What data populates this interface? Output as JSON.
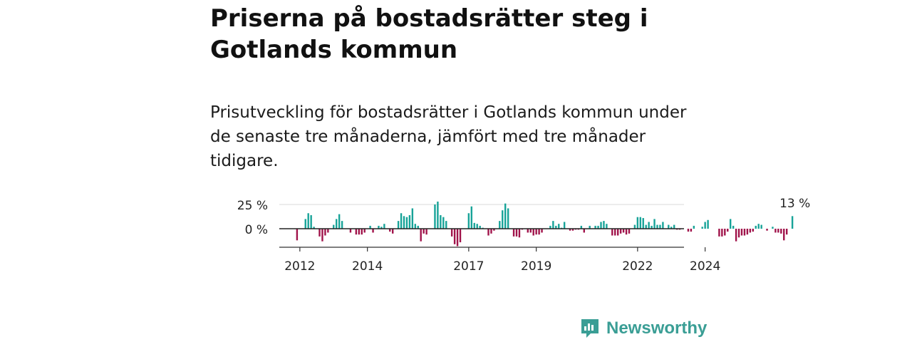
{
  "title": "Priserna på bostadsrätter steg i Gotlands kommun",
  "subtitle": "Prisutveckling för bostadsrätter i Gotlands kommun under de senaste tre månaderna, jämfört med tre månader tidigare.",
  "brand": {
    "name": "Newsworthy",
    "icon": "newsworthy-logo-icon",
    "color": "#3a9e95"
  },
  "colors": {
    "positive": "#17a398",
    "negative": "#a0134a",
    "axis": "#333333",
    "grid": "#d9d9d9"
  },
  "chart_data": {
    "type": "bar",
    "title": "",
    "xlabel": "",
    "ylabel": "",
    "y_ticks": [
      {
        "value": 0,
        "label": "0 %"
      },
      {
        "value": 25,
        "label": "25 %"
      }
    ],
    "x_ticks": [
      {
        "date": "2012-01",
        "label": "2012"
      },
      {
        "date": "2014-01",
        "label": "2014"
      },
      {
        "date": "2017-01",
        "label": "2017"
      },
      {
        "date": "2019-01",
        "label": "2019"
      },
      {
        "date": "2022-01",
        "label": "2022"
      },
      {
        "date": "2024-01",
        "label": "2024"
      }
    ],
    "ylim": [
      -18,
      30
    ],
    "grid": true,
    "last_value_label": "13 %",
    "series": [
      {
        "start": "2011-06",
        "frequency": "monthly",
        "values": [
          0,
          0,
          0,
          0,
          0,
          0,
          -12,
          0,
          0,
          10,
          16,
          14,
          2,
          0,
          -8,
          -13,
          -7,
          -4,
          0,
          4,
          10,
          15,
          8,
          0,
          0,
          -4,
          0,
          -6,
          -6,
          -6,
          -4,
          0,
          3,
          -4,
          0,
          3,
          2,
          5,
          0,
          -3,
          -5,
          0,
          8,
          16,
          13,
          12,
          14,
          21,
          5,
          3,
          -13,
          -5,
          -6,
          0,
          0,
          25,
          28,
          14,
          12,
          8,
          0,
          -8,
          -16,
          -18,
          -14,
          0,
          0,
          16,
          23,
          6,
          5,
          3,
          1,
          0,
          -7,
          -5,
          -2,
          0,
          8,
          19,
          26,
          21,
          0,
          -8,
          -8,
          -9,
          -1,
          0,
          -4,
          -4,
          -7,
          -6,
          -6,
          -4,
          0,
          0,
          3,
          8,
          3,
          5,
          1,
          7,
          0,
          -2,
          -2,
          -1,
          -1,
          3,
          -4,
          0,
          3,
          0,
          3,
          3,
          7,
          8,
          5,
          0,
          -7,
          -7,
          -7,
          -5,
          -4,
          -6,
          -5,
          0,
          4,
          12,
          12,
          11,
          4,
          7,
          3,
          10,
          4,
          4,
          7,
          0,
          4,
          2,
          4,
          -1,
          -1,
          0,
          0,
          -3,
          -3,
          3,
          0,
          0,
          2,
          7,
          9,
          0,
          0,
          0,
          -8,
          -8,
          -7,
          -3,
          10,
          3,
          -13,
          -9,
          -7,
          -7,
          -6,
          -4,
          -3,
          3,
          5,
          4,
          0,
          -2,
          0,
          2,
          -4,
          -4,
          -5,
          -12,
          -6,
          0,
          13
        ]
      }
    ]
  }
}
